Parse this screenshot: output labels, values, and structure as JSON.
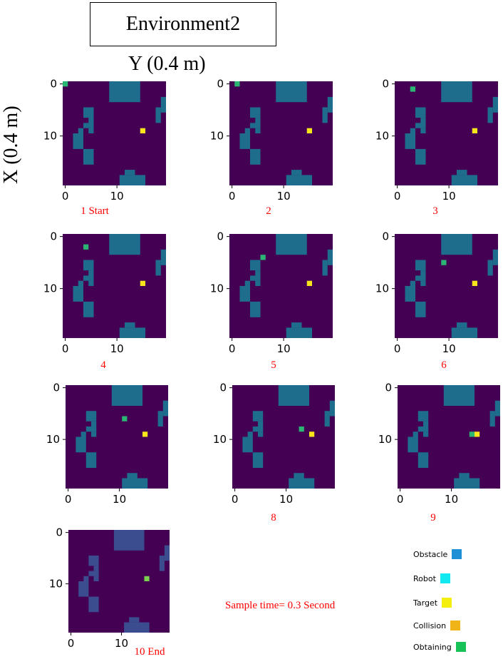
{
  "figure": {
    "title": "Environment2",
    "y_axis_label": "Y (0.4 m)",
    "x_axis_label": "X (0.4 m)",
    "sample_time": "Sample time= 0.3 Second"
  },
  "legend": [
    {
      "label": "Obstacle",
      "color": "#1f8fd6"
    },
    {
      "label": "Robot",
      "color": "#11e8f0"
    },
    {
      "label": "Target",
      "color": "#f5ef10"
    },
    {
      "label": "Collision",
      "color": "#f0b418"
    },
    {
      "label": "Obtaining",
      "color": "#19c259"
    }
  ],
  "colors": {
    "background": "#440154",
    "obstacle": "#1f6d8d",
    "obstacle_dim": "#3b4d8f",
    "robot": "#2bb673",
    "target": "#f6e51b",
    "obtaining": "#7ad151"
  },
  "chart_data": [
    {
      "type": "heatmap",
      "caption": "1  Start",
      "x_ticks": [
        0,
        10
      ],
      "y_ticks": [
        0,
        10
      ],
      "xlim": [
        -0.5,
        19.5
      ],
      "ylim": [
        19.5,
        -0.5
      ],
      "robot": [
        0,
        0
      ],
      "target": [
        15,
        9
      ],
      "obtained": false
    },
    {
      "type": "heatmap",
      "caption": "2",
      "x_ticks": [
        0,
        10
      ],
      "y_ticks": [
        0,
        10
      ],
      "xlim": [
        -0.5,
        19.5
      ],
      "ylim": [
        19.5,
        -0.5
      ],
      "robot": [
        1,
        0
      ],
      "target": [
        15,
        9
      ],
      "obtained": false
    },
    {
      "type": "heatmap",
      "caption": "3",
      "x_ticks": [
        0,
        10
      ],
      "y_ticks": [
        0,
        10
      ],
      "xlim": [
        -0.5,
        19.5
      ],
      "ylim": [
        19.5,
        -0.5
      ],
      "robot": [
        3,
        1
      ],
      "target": [
        15,
        9
      ],
      "obtained": false
    },
    {
      "type": "heatmap",
      "caption": "4",
      "x_ticks": [
        0,
        10
      ],
      "y_ticks": [
        0,
        10
      ],
      "xlim": [
        -0.5,
        19.5
      ],
      "ylim": [
        19.5,
        -0.5
      ],
      "robot": [
        4,
        2
      ],
      "target": [
        15,
        9
      ],
      "obtained": false
    },
    {
      "type": "heatmap",
      "caption": "5",
      "x_ticks": [
        0,
        10
      ],
      "y_ticks": [
        0,
        10
      ],
      "xlim": [
        -0.5,
        19.5
      ],
      "ylim": [
        19.5,
        -0.5
      ],
      "robot": [
        6,
        4
      ],
      "target": [
        15,
        9
      ],
      "obtained": false
    },
    {
      "type": "heatmap",
      "caption": "6",
      "x_ticks": [
        0,
        10
      ],
      "y_ticks": [
        0,
        10
      ],
      "xlim": [
        -0.5,
        19.5
      ],
      "ylim": [
        19.5,
        -0.5
      ],
      "robot": [
        9,
        5
      ],
      "target": [
        15,
        9
      ],
      "obtained": false
    },
    {
      "type": "heatmap",
      "caption": "",
      "x_ticks": [
        0,
        10
      ],
      "y_ticks": [
        0,
        10
      ],
      "xlim": [
        -0.5,
        19.5
      ],
      "ylim": [
        19.5,
        -0.5
      ],
      "robot": [
        11,
        6
      ],
      "target": [
        15,
        9
      ],
      "obtained": false
    },
    {
      "type": "heatmap",
      "caption": "8",
      "x_ticks": [
        0,
        10
      ],
      "y_ticks": [
        0,
        10
      ],
      "xlim": [
        -0.5,
        19.5
      ],
      "ylim": [
        19.5,
        -0.5
      ],
      "robot": [
        13,
        8
      ],
      "target": [
        15,
        9
      ],
      "obtained": false
    },
    {
      "type": "heatmap",
      "caption": "9",
      "x_ticks": [
        0,
        10
      ],
      "y_ticks": [
        0,
        10
      ],
      "xlim": [
        -0.5,
        19.5
      ],
      "ylim": [
        19.5,
        -0.5
      ],
      "robot": [
        14,
        9
      ],
      "target": [
        15,
        9
      ],
      "obtained": false
    },
    {
      "type": "heatmap",
      "caption": "10  End",
      "x_ticks": [
        0,
        10
      ],
      "y_ticks": [
        0,
        10
      ],
      "xlim": [
        -0.5,
        19.5
      ],
      "ylim": [
        19.5,
        -0.5
      ],
      "robot": null,
      "target": [
        15,
        9
      ],
      "obtained": true
    }
  ],
  "obstacles": [
    {
      "x": 9,
      "y": 0,
      "w": 6,
      "h": 4
    },
    {
      "x": 19,
      "y": 3,
      "w": 1,
      "h": 3
    },
    {
      "x": 18,
      "y": 5,
      "w": 1,
      "h": 3
    },
    {
      "x": 4,
      "y": 5,
      "w": 2,
      "h": 2
    },
    {
      "x": 5,
      "y": 7,
      "w": 1,
      "h": 2
    },
    {
      "x": 4,
      "y": 8,
      "w": 2,
      "h": 1
    },
    {
      "x": 5,
      "y": 9,
      "w": 1,
      "h": 1
    },
    {
      "x": 3,
      "y": 9,
      "w": 1,
      "h": 1
    },
    {
      "x": 2,
      "y": 10,
      "w": 2,
      "h": 3
    },
    {
      "x": 4,
      "y": 13,
      "w": 2,
      "h": 3
    },
    {
      "x": 11,
      "y": 18,
      "w": 5,
      "h": 2
    },
    {
      "x": 12,
      "y": 17,
      "w": 2,
      "h": 1
    }
  ]
}
